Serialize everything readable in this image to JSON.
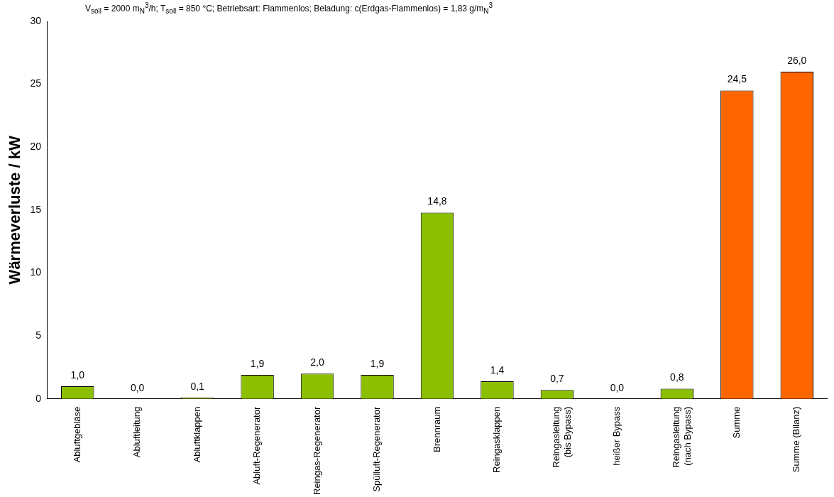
{
  "chart_data": {
    "type": "bar",
    "title": "V$_{soll}$ = 2000 m$_{N}$$^{3}$/h; T$_{soll}$ = 850 °C; Betriebsart: Flammenlos; Beladung: c(Erdgas-Flammenlos) = 1,83 g/m$_{N}$$^{3}$",
    "ylabel": "Wärmeverluste / kW",
    "categories": [
      "Abluftgebläse",
      "Abluftleitung",
      "Abluftklappen",
      "Abluft-Regenerator",
      "Reingas-Regenerator",
      "Spülluft-Regenerator",
      "Brennraum",
      "Reingasklappen",
      "Reingasleitung\n(bis Bypass)",
      "heißer Bypass",
      "Reingasleitung\n(nach Bypass)",
      "Summe",
      "Summe (Bilanz)"
    ],
    "values": [
      1.0,
      0.0,
      0.1,
      1.9,
      2.0,
      1.9,
      14.8,
      1.4,
      0.7,
      0.0,
      0.8,
      24.5,
      26.0
    ],
    "value_labels": [
      "1,0",
      "0,0",
      "0,1",
      "1,9",
      "2,0",
      "1,9",
      "14,8",
      "1,4",
      "0,7",
      "0,0",
      "0,8",
      "24,5",
      "26,0"
    ],
    "colors": [
      "#8cbf00",
      "#8cbf00",
      "#8cbf00",
      "#8cbf00",
      "#8cbf00",
      "#8cbf00",
      "#8cbf00",
      "#8cbf00",
      "#8cbf00",
      "#8cbf00",
      "#8cbf00",
      "#ff6600",
      "#ff6600"
    ],
    "ylim": [
      0,
      30
    ],
    "yticks": [
      0,
      5,
      10,
      15,
      20,
      25,
      30
    ]
  }
}
